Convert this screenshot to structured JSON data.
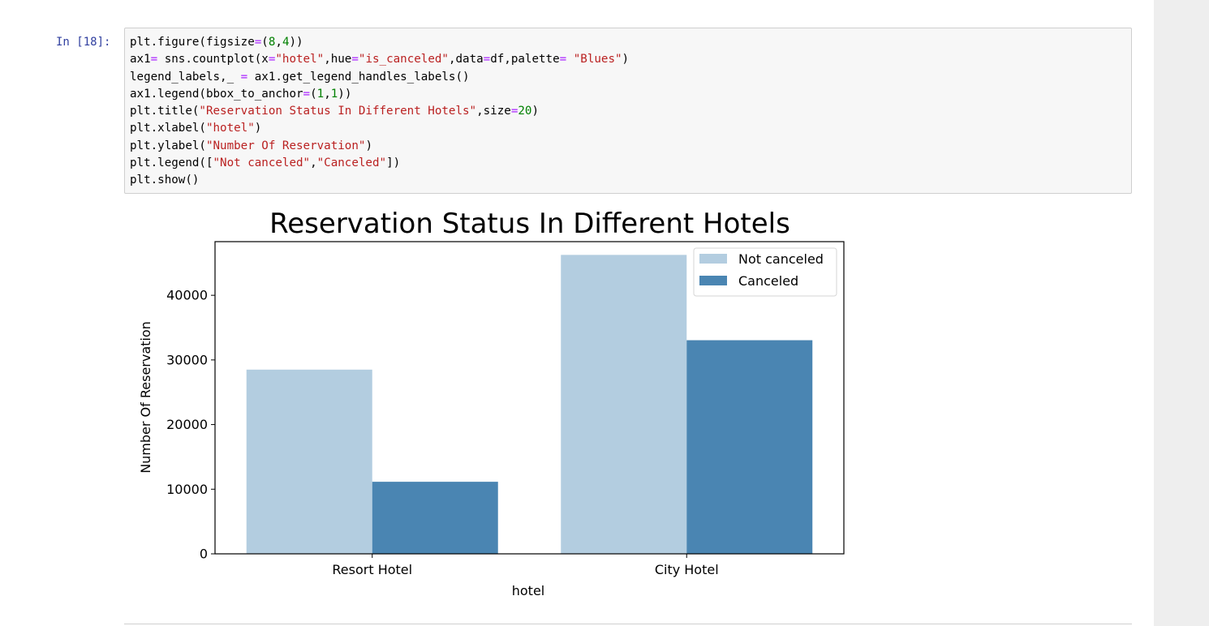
{
  "cell": {
    "prompt": "In [18]:",
    "code_lines": [
      [
        [
          "plt.figure(figsize",
          ""
        ],
        [
          "=",
          "op"
        ],
        [
          "(",
          ""
        ],
        [
          "8",
          "num"
        ],
        [
          ",",
          ""
        ],
        [
          "4",
          "num"
        ],
        [
          "))",
          ""
        ]
      ],
      [
        [
          "ax1",
          ""
        ],
        [
          "=",
          "op"
        ],
        [
          " sns.countplot(x",
          ""
        ],
        [
          "=",
          "op"
        ],
        [
          "\"hotel\"",
          "str"
        ],
        [
          ",hue",
          ""
        ],
        [
          "=",
          "op"
        ],
        [
          "\"is_canceled\"",
          "str"
        ],
        [
          ",data",
          ""
        ],
        [
          "=",
          "op"
        ],
        [
          "df,palette",
          ""
        ],
        [
          "=",
          "op"
        ],
        [
          " ",
          ""
        ],
        [
          "\"Blues\"",
          "str"
        ],
        [
          ")",
          ""
        ]
      ],
      [
        [
          "legend_labels,_ ",
          ""
        ],
        [
          "=",
          "op"
        ],
        [
          " ax1.get_legend_handles_labels()",
          ""
        ]
      ],
      [
        [
          "ax1.legend(bbox_to_anchor",
          ""
        ],
        [
          "=",
          "op"
        ],
        [
          "(",
          ""
        ],
        [
          "1",
          "num"
        ],
        [
          ",",
          ""
        ],
        [
          "1",
          "num"
        ],
        [
          "))",
          ""
        ]
      ],
      [
        [
          "plt.title(",
          ""
        ],
        [
          "\"Reservation Status In Different Hotels\"",
          "str"
        ],
        [
          ",size",
          ""
        ],
        [
          "=",
          "op"
        ],
        [
          "20",
          "num"
        ],
        [
          ")",
          ""
        ]
      ],
      [
        [
          "plt.xlabel(",
          ""
        ],
        [
          "\"hotel\"",
          "str"
        ],
        [
          ")",
          ""
        ]
      ],
      [
        [
          "plt.ylabel(",
          ""
        ],
        [
          "\"Number Of Reservation\"",
          "str"
        ],
        [
          ")",
          ""
        ]
      ],
      [
        [
          "plt.legend([",
          ""
        ],
        [
          "\"Not canceled\"",
          "str"
        ],
        [
          ",",
          ""
        ],
        [
          "\"Canceled\"",
          "str"
        ],
        [
          "])",
          ""
        ]
      ],
      [
        [
          "plt.show()",
          ""
        ]
      ]
    ]
  },
  "chart_data": {
    "type": "bar",
    "title": "Reservation Status In Different Hotels",
    "xlabel": "hotel",
    "ylabel": "Number Of Reservation",
    "categories": [
      "Resort Hotel",
      "City Hotel"
    ],
    "series": [
      {
        "name": "Not canceled",
        "values": [
          28500,
          46250
        ],
        "color": "#b3cde0"
      },
      {
        "name": "Canceled",
        "values": [
          11150,
          33050
        ],
        "color": "#4a85b2"
      }
    ],
    "ylim": [
      0,
      48300
    ],
    "yticks": [
      0,
      10000,
      20000,
      30000,
      40000
    ],
    "ytick_labels": [
      "0",
      "10000",
      "20000",
      "30000",
      "40000"
    ],
    "legend_placement": "top-right",
    "grid": false
  }
}
